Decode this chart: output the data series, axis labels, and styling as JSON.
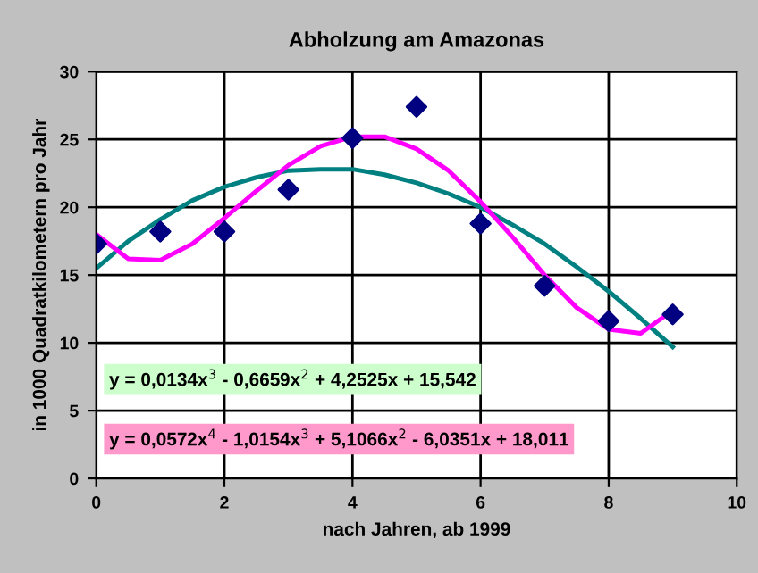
{
  "chart_data": {
    "type": "scatter",
    "title": "Abholzung am Amazonas",
    "xlabel": "nach Jahren, ab 1999",
    "ylabel": "in 1000 Quadratkilometern pro Jahr",
    "x": [
      0,
      1,
      2,
      3,
      4,
      5,
      6,
      7,
      8,
      9
    ],
    "series": [
      {
        "color": "#000080",
        "marker": "diamond",
        "values": [
          17.3,
          18.2,
          18.2,
          21.3,
          25.1,
          27.4,
          18.8,
          14.2,
          11.6,
          12.1
        ]
      },
      {
        "type": "line",
        "color": "#008080",
        "marker": "none",
        "line_style": "solid",
        "x": [
          0,
          0.5,
          1,
          1.5,
          2,
          2.5,
          3,
          3.5,
          4,
          4.5,
          5,
          5.5,
          6,
          6.5,
          7,
          7.5,
          8,
          8.5,
          9
        ],
        "values": [
          15.5,
          17.5,
          19.1,
          20.5,
          21.5,
          22.2,
          22.7,
          22.8,
          22.8,
          22.4,
          21.8,
          21.0,
          20.0,
          18.7,
          17.3,
          15.6,
          13.8,
          11.8,
          9.7
        ]
      },
      {
        "type": "line",
        "color": "#ff00ff",
        "marker": "none",
        "line_style": "solid",
        "x": [
          0,
          0.5,
          1,
          1.5,
          2,
          2.5,
          3,
          3.5,
          4,
          4.5,
          5,
          5.5,
          6,
          6.5,
          7,
          7.5,
          8,
          8.5,
          9
        ],
        "values": [
          18.0,
          16.2,
          16.1,
          17.3,
          19.2,
          21.2,
          23.1,
          24.5,
          25.2,
          25.2,
          24.3,
          22.7,
          20.4,
          17.8,
          15.0,
          12.6,
          11.0,
          10.7,
          12.4
        ]
      }
    ],
    "annotations": [
      "y = 0,0134x$^{3}$ - 0,6659x$^{2}$ + 4,2525x + 15,542",
      "y = 0,0572x$^{4}$ - 1,0154x$^{3}$ + 5,1066x$^{2}$ - 6,0351x + 18,011"
    ],
    "xlim": [
      0,
      10
    ],
    "xticks": [
      0,
      2,
      4,
      6,
      8,
      10
    ],
    "ylim": [
      0,
      30
    ],
    "yticks": [
      0,
      5,
      10,
      15,
      20,
      25,
      30
    ],
    "grid": true,
    "legend": false
  }
}
